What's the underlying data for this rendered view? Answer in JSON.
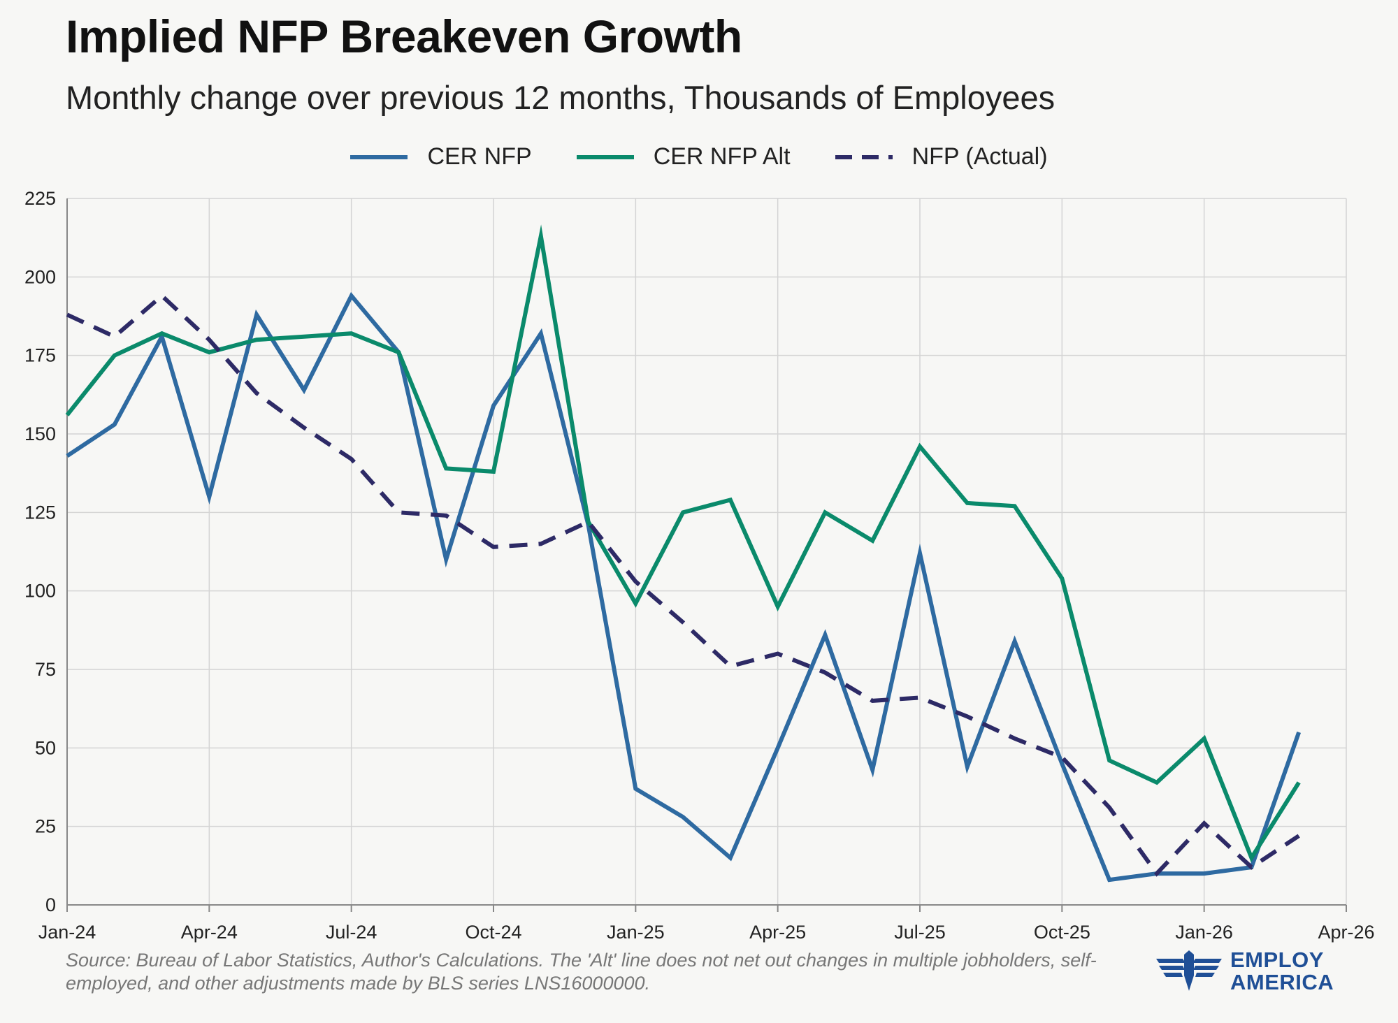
{
  "title": "Implied NFP Breakeven Growth",
  "subtitle": "Monthly change over previous 12 months, Thousands of Employees",
  "source": "Source: Bureau of Labor Statistics, Author's Calculations. The 'Alt' line does not net out changes in multiple jobholders, self-employed, and other adjustments made by BLS series LNS16000000.",
  "logo": {
    "line1": "EMPLOY",
    "line2": "AMERICA",
    "icon": "eagle-wings-icon"
  },
  "colors": {
    "cer_nfp": "#2e6aa1",
    "cer_nfp_alt": "#0a8a6b",
    "nfp_actual": "#2d2a66",
    "grid": "#d4d4d4",
    "background": "#f7f7f5"
  },
  "chart_data": {
    "type": "line",
    "title": "Implied NFP Breakeven Growth",
    "subtitle": "Monthly change over previous 12 months, Thousands of Employees",
    "xlabel": "",
    "ylabel": "",
    "ylim": [
      0,
      225
    ],
    "yticks": [
      0,
      25,
      50,
      75,
      100,
      125,
      150,
      175,
      200,
      225
    ],
    "xticks": [
      "Jan-24",
      "Apr-24",
      "Jul-24",
      "Oct-24",
      "Jan-25",
      "Apr-25",
      "Jul-25",
      "Oct-25",
      "Jan-26",
      "Apr-26"
    ],
    "x": [
      "Jan-24",
      "Feb-24",
      "Mar-24",
      "Apr-24",
      "May-24",
      "Jun-24",
      "Jul-24",
      "Aug-24",
      "Sep-24",
      "Oct-24",
      "Nov-24",
      "Dec-24",
      "Jan-25",
      "Feb-25",
      "Mar-25",
      "Apr-25",
      "May-25",
      "Jun-25",
      "Jul-25",
      "Aug-25",
      "Sep-25",
      "Oct-25",
      "Nov-25",
      "Dec-25",
      "Jan-26",
      "Feb-26",
      "Mar-26"
    ],
    "legend_position": "top",
    "grid": true,
    "series": [
      {
        "name": "CER NFP",
        "style": "solid",
        "values": [
          143,
          153,
          181,
          130,
          188,
          164,
          194,
          176,
          110,
          159,
          182,
          121,
          37,
          28,
          15,
          50,
          86,
          43,
          112,
          44,
          84,
          45,
          8,
          10,
          10,
          12,
          55
        ]
      },
      {
        "name": "CER NFP Alt",
        "style": "solid",
        "values": [
          156,
          175,
          182,
          176,
          180,
          181,
          182,
          176,
          139,
          138,
          213,
          122,
          96,
          125,
          129,
          95,
          125,
          116,
          146,
          128,
          127,
          104,
          46,
          39,
          53,
          15,
          39
        ]
      },
      {
        "name": "NFP (Actual)",
        "style": "dashed",
        "values": [
          188,
          181,
          194,
          180,
          163,
          152,
          142,
          125,
          124,
          114,
          115,
          122,
          103,
          90,
          76,
          80,
          74,
          65,
          66,
          60,
          53,
          47,
          31,
          10,
          26,
          12,
          22
        ]
      }
    ]
  }
}
